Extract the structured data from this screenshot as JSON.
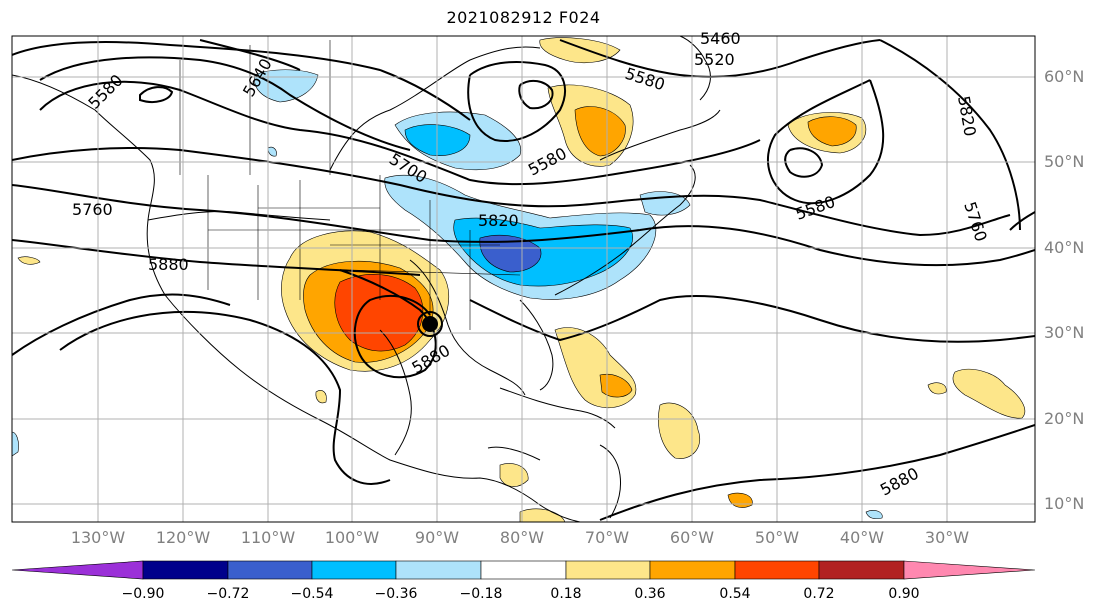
{
  "title": "2021082912 F024",
  "lon_labels": [
    "130°W",
    "120°W",
    "110°W",
    "100°W",
    "90°W",
    "80°W",
    "70°W",
    "60°W",
    "50°W",
    "40°W",
    "30°W"
  ],
  "lat_labels": [
    "60°N",
    "50°N",
    "40°N",
    "30°N",
    "20°N",
    "10°N"
  ],
  "contour_labels": [
    "5460",
    "5520",
    "5580",
    "5640",
    "5580",
    "5700",
    "5580",
    "5760",
    "5820",
    "5880",
    "5880",
    "5880",
    "5580",
    "5820",
    "5760"
  ],
  "colorbar": {
    "ticks": [
      "−0.90",
      "−0.72",
      "−0.54",
      "−0.36",
      "−0.18",
      "0.18",
      "0.36",
      "0.54",
      "0.72",
      "0.90"
    ],
    "colors": [
      "#9b30d8",
      "#00008b",
      "#3a5fcd",
      "#00bfff",
      "#aee3fb",
      "#ffffff",
      "#fde68a",
      "#ffa500",
      "#ff4500",
      "#b22222",
      "#ff88b0"
    ]
  },
  "storm_marker": "tropical-cyclone-center"
}
